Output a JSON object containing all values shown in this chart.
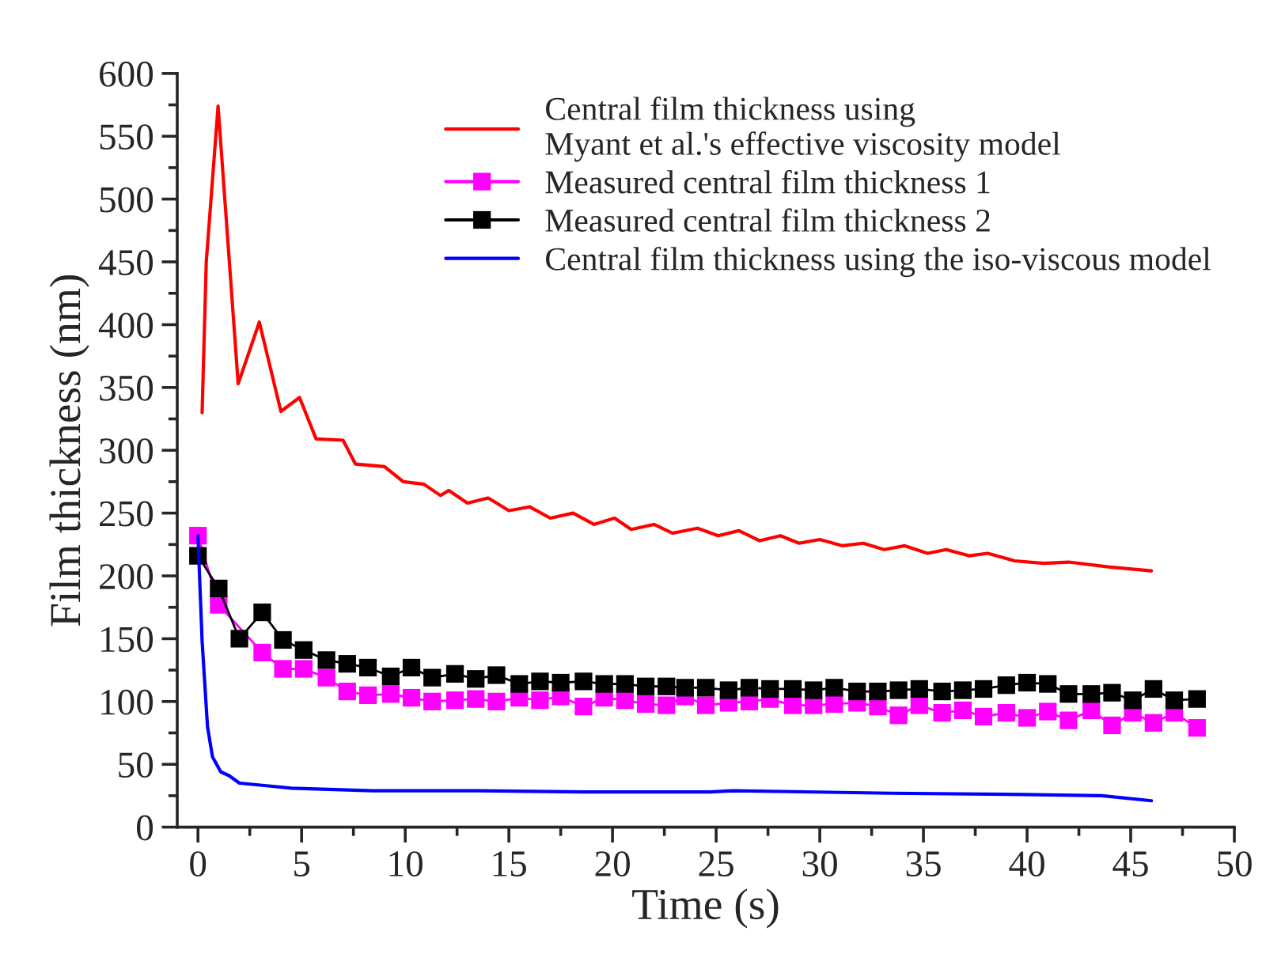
{
  "chart_data": {
    "type": "line",
    "xlabel": "Time (s)",
    "ylabel": "Film thickness (nm)",
    "xlim": [
      -1,
      50
    ],
    "xticks": [
      0,
      5,
      10,
      15,
      20,
      25,
      30,
      35,
      40,
      45,
      50
    ],
    "ylim": [
      0,
      600
    ],
    "yticks": [
      0,
      50,
      100,
      150,
      200,
      250,
      300,
      350,
      400,
      450,
      500,
      550,
      600
    ],
    "grid": false,
    "legend": "top right",
    "series": [
      {
        "name": "Central film thickness using\nMyant et al.'s effective viscosity model",
        "color": "#ff0000",
        "marker": "none",
        "line_style": "solid",
        "x": [
          0.2,
          0.4,
          0.97,
          1.94,
          2.96,
          4.0,
          4.9,
          5.7,
          7.0,
          7.6,
          9.0,
          9.9,
          10.9,
          11.7,
          12.1,
          13.0,
          14.0,
          15.0,
          16.0,
          17.0,
          18.1,
          19.1,
          20.1,
          20.9,
          22.0,
          22.9,
          24.1,
          25.1,
          26.1,
          27.1,
          28.1,
          29.0,
          30.0,
          31.1,
          32.1,
          33.1,
          34.1,
          35.2,
          36.1,
          37.2,
          38.1,
          39.4,
          40.8,
          42.0,
          44.0,
          46.0
        ],
        "values": [
          330,
          450,
          574,
          353,
          402,
          331,
          342,
          309,
          308,
          289,
          287,
          275,
          273,
          264,
          268,
          258,
          262,
          252,
          255,
          246,
          250,
          241,
          246,
          237,
          241,
          234,
          238,
          232,
          236,
          228,
          232,
          226,
          229,
          224,
          226,
          221,
          224,
          218,
          221,
          216,
          218,
          212,
          210,
          211,
          207,
          204
        ]
      },
      {
        "name": "Measured central film thickness 1",
        "color": "#ff00ff",
        "marker": "square",
        "line_style": "solid",
        "x": [
          0,
          1,
          2,
          3.1,
          4.1,
          5.1,
          6.2,
          7.2,
          8.2,
          9.3,
          10.3,
          11.3,
          12.4,
          13.4,
          14.4,
          15.5,
          16.5,
          17.5,
          18.6,
          19.6,
          20.6,
          21.6,
          22.6,
          23.5,
          24.5,
          25.6,
          26.6,
          27.6,
          28.7,
          29.7,
          30.7,
          31.8,
          32.8,
          33.8,
          34.8,
          35.9,
          36.9,
          37.9,
          39.0,
          40.0,
          41.0,
          42.0,
          43.1,
          44.1,
          45.1,
          46.1,
          47.1,
          48.2
        ],
        "values": [
          232,
          177,
          null,
          139,
          126,
          126,
          119,
          108,
          105,
          106,
          103,
          100,
          101,
          102,
          100,
          103,
          101,
          104,
          96,
          103,
          101,
          98,
          97,
          104,
          97,
          99,
          100,
          102,
          97,
          97,
          98,
          99,
          96,
          89,
          97,
          91,
          93,
          88,
          91,
          87,
          92,
          85,
          93,
          81,
          91,
          83,
          91,
          79
        ]
      },
      {
        "name": "Measured central film thickness 2",
        "color": "#000000",
        "marker": "square",
        "line_style": "solid",
        "x": [
          0,
          1,
          2,
          3.1,
          4.1,
          5.1,
          6.2,
          7.2,
          8.2,
          9.3,
          10.3,
          11.3,
          12.4,
          13.4,
          14.4,
          15.5,
          16.5,
          17.5,
          18.6,
          19.6,
          20.6,
          21.6,
          22.6,
          23.5,
          24.5,
          25.6,
          26.6,
          27.6,
          28.7,
          29.7,
          30.7,
          31.8,
          32.8,
          33.8,
          34.8,
          35.9,
          36.9,
          37.9,
          39.0,
          40.0,
          41.0,
          42.0,
          43.1,
          44.1,
          45.1,
          46.1,
          47.1,
          48.2
        ],
        "values": [
          216,
          190,
          150,
          171,
          149,
          141,
          133,
          130,
          127,
          120,
          127,
          119,
          122,
          118,
          121,
          114,
          116,
          115,
          116,
          114,
          114,
          112,
          112,
          111,
          111,
          109,
          111,
          110,
          110,
          109,
          111,
          108,
          108,
          109,
          110,
          108,
          109,
          110,
          113,
          115,
          114,
          106,
          106,
          107,
          101,
          110,
          101,
          102
        ]
      },
      {
        "name": "Central film thickness using the iso-viscous model",
        "color": "#0000ff",
        "marker": "none",
        "line_style": "solid",
        "x": [
          0,
          0.2,
          0.46,
          0.7,
          1.1,
          1.5,
          2.0,
          3.3,
          4.5,
          8.4,
          13.5,
          18.6,
          24.7,
          25.8,
          33.4,
          39.8,
          43.6,
          46.0
        ],
        "values": [
          232,
          148,
          80,
          56,
          44,
          41,
          35,
          33,
          31,
          29,
          29,
          28,
          28,
          29,
          27,
          26,
          25,
          21
        ]
      }
    ]
  }
}
